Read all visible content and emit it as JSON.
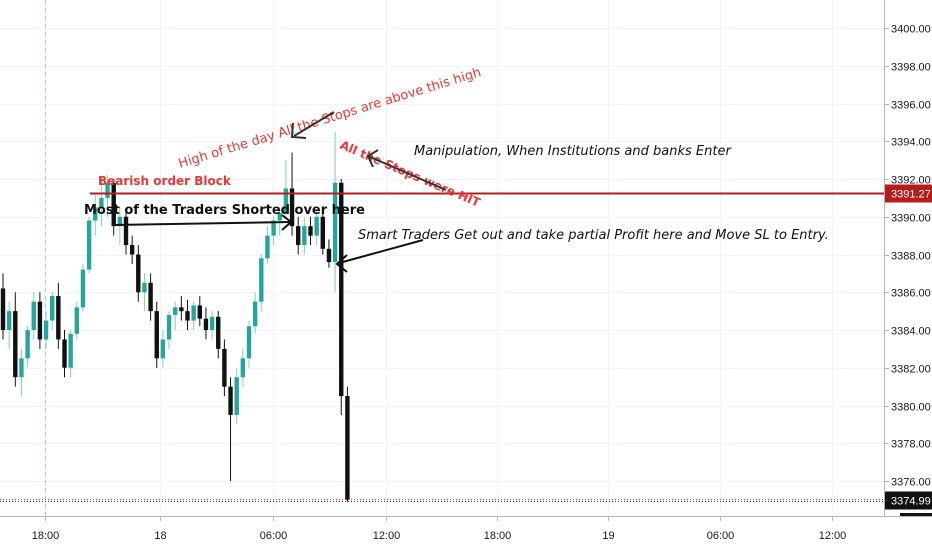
{
  "chart_data": {
    "type": "candlestick",
    "ylim": [
      3374,
      3402
    ],
    "y_ticks": [
      "3376.00",
      "3378.00",
      "3380.00",
      "3382.00",
      "3384.00",
      "3386.00",
      "3388.00",
      "3390.00",
      "3392.00",
      "3394.00",
      "3396.00",
      "3398.00",
      "3400.00"
    ],
    "x_ticks": [
      "18:00",
      "18",
      "06:00",
      "12:00",
      "18:00",
      "19",
      "06:00",
      "12:00"
    ],
    "levels": [
      {
        "label": "3391.27",
        "value": 3391.27,
        "color": "#b71c1c"
      },
      {
        "label": "3374.99",
        "value": 3374.99,
        "color": "#111111"
      }
    ],
    "candles": [
      [
        3386.2,
        3387.0,
        3383.5,
        3384.0
      ],
      [
        3384.0,
        3385.5,
        3383.0,
        3385.0
      ],
      [
        3385.0,
        3386.0,
        3381.0,
        3381.5
      ],
      [
        3381.5,
        3383.0,
        3380.5,
        3382.5
      ],
      [
        3382.5,
        3384.2,
        3382.0,
        3384.0
      ],
      [
        3384.0,
        3386.0,
        3383.5,
        3385.5
      ],
      [
        3385.5,
        3386.0,
        3383.0,
        3383.5
      ],
      [
        3383.5,
        3385.0,
        3383.0,
        3384.5
      ],
      [
        3384.5,
        3386.0,
        3384.0,
        3385.8
      ],
      [
        3385.8,
        3386.5,
        3383.0,
        3383.5
      ],
      [
        3383.5,
        3384.0,
        3381.5,
        3382.0
      ],
      [
        3382.0,
        3384.0,
        3381.5,
        3383.8
      ],
      [
        3383.8,
        3385.5,
        3383.5,
        3385.2
      ],
      [
        3385.2,
        3387.5,
        3385.0,
        3387.2
      ],
      [
        3387.2,
        3390.0,
        3387.0,
        3389.8
      ],
      [
        3389.8,
        3391.2,
        3389.0,
        3390.5
      ],
      [
        3390.5,
        3392.0,
        3389.5,
        3391.0
      ],
      [
        3391.0,
        3392.2,
        3390.0,
        3391.8
      ],
      [
        3391.8,
        3392.0,
        3389.0,
        3389.5
      ],
      [
        3389.5,
        3390.5,
        3388.5,
        3390.0
      ],
      [
        3390.0,
        3390.4,
        3388.0,
        3388.5
      ],
      [
        3388.5,
        3389.0,
        3387.5,
        3388.0
      ],
      [
        3388.0,
        3388.5,
        3385.5,
        3386.0
      ],
      [
        3386.0,
        3387.0,
        3385.0,
        3386.5
      ],
      [
        3386.5,
        3387.0,
        3384.5,
        3385.0
      ],
      [
        3385.0,
        3385.5,
        3382.0,
        3382.5
      ],
      [
        3382.5,
        3384.0,
        3382.0,
        3383.5
      ],
      [
        3383.5,
        3385.0,
        3383.0,
        3384.8
      ],
      [
        3384.8,
        3385.5,
        3384.0,
        3385.2
      ],
      [
        3385.2,
        3385.8,
        3384.5,
        3385.0
      ],
      [
        3385.0,
        3385.6,
        3384.0,
        3384.5
      ],
      [
        3384.5,
        3385.5,
        3384.0,
        3385.3
      ],
      [
        3385.3,
        3385.8,
        3384.2,
        3384.6
      ],
      [
        3384.6,
        3385.2,
        3383.5,
        3384.0
      ],
      [
        3384.0,
        3385.0,
        3383.5,
        3384.7
      ],
      [
        3384.7,
        3385.0,
        3382.5,
        3383.0
      ],
      [
        3383.0,
        3383.5,
        3380.5,
        3381.0
      ],
      [
        3381.0,
        3381.5,
        3376.0,
        3379.5
      ],
      [
        3379.5,
        3382.0,
        3379.0,
        3381.5
      ],
      [
        3381.5,
        3383.0,
        3381.0,
        3382.5
      ],
      [
        3382.5,
        3384.5,
        3382.0,
        3384.2
      ],
      [
        3384.2,
        3386.0,
        3383.8,
        3385.5
      ],
      [
        3385.5,
        3388.0,
        3385.0,
        3387.8
      ],
      [
        3387.8,
        3389.5,
        3387.5,
        3389.0
      ],
      [
        3389.0,
        3390.0,
        3388.5,
        3389.8
      ],
      [
        3389.8,
        3390.5,
        3389.0,
        3390.2
      ],
      [
        3390.2,
        3393.0,
        3390.0,
        3391.5
      ],
      [
        3391.5,
        3393.4,
        3389.0,
        3389.5
      ],
      [
        3389.5,
        3390.0,
        3388.0,
        3388.5
      ],
      [
        3388.5,
        3390.0,
        3388.0,
        3389.5
      ],
      [
        3389.5,
        3390.0,
        3388.5,
        3389.0
      ],
      [
        3389.0,
        3390.3,
        3388.5,
        3390.0
      ],
      [
        3390.0,
        3390.2,
        3388.0,
        3388.3
      ],
      [
        3388.3,
        3388.8,
        3387.3,
        3387.6
      ],
      [
        3387.6,
        3394.5,
        3386.0,
        3391.8
      ],
      [
        3391.8,
        3392.0,
        3379.5,
        3380.5
      ],
      [
        3380.5,
        3381.0,
        3374.9,
        3375.0
      ]
    ]
  },
  "annotations": {
    "bearish_order_block": "Bearish order Block",
    "high_of_day": "High of the day All the Stops are above this high",
    "manipulation": "Manipulation, When Institutions and banks Enter",
    "all_stops_hit": "All the Stops were HIT",
    "traders_shorted": "Most of the Traders Shorted over here",
    "smart_traders": "Smart Traders Get out and take partial Profit here and Move SL to Entry."
  },
  "colors": {
    "up": "#26a69a",
    "up_light": "#7fd3a1",
    "down": "#111111",
    "annotation_red": "#e53935",
    "level_red": "#b71c1c"
  }
}
